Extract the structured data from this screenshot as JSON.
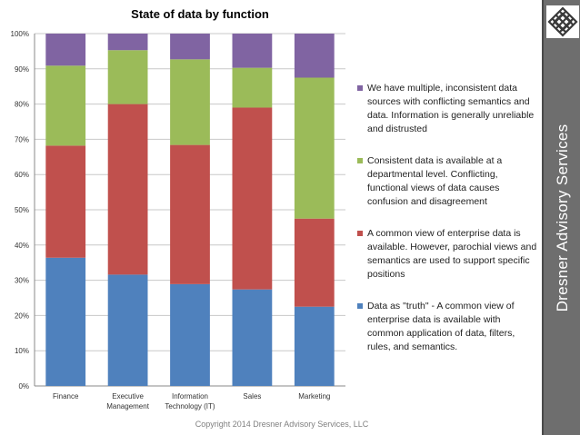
{
  "chart_data": {
    "type": "bar",
    "stacked": true,
    "title": "State of data by function",
    "categories": [
      "Finance",
      "Executive Management",
      "Information Technology (IT)",
      "Sales",
      "Marketing"
    ],
    "category_lines": [
      [
        "Finance"
      ],
      [
        "Executive",
        "Management"
      ],
      [
        "Information",
        "Technology (IT)"
      ],
      [
        "Sales"
      ],
      [
        "Marketing"
      ]
    ],
    "ylim": [
      0,
      100
    ],
    "yticks": [
      "0%",
      "10%",
      "20%",
      "30%",
      "40%",
      "50%",
      "60%",
      "70%",
      "80%",
      "90%",
      "100%"
    ],
    "series": [
      {
        "name": "Data as \"truth\" - A common view of enterprise data is available with common application of data, filters, rules, and semantics.",
        "color": "#4F81BD",
        "values": [
          36.4,
          31.6,
          28.9,
          27.4,
          22.5
        ]
      },
      {
        "name": "A common view of enterprise data is available. However, parochial views and semantics are used to support specific positions",
        "color": "#C0504D",
        "values": [
          31.8,
          48.4,
          39.5,
          51.6,
          25.0
        ]
      },
      {
        "name": "Consistent data is available at a departmental level. Conflicting, functional views of data causes confusion and disagreement",
        "color": "#9BBB59",
        "values": [
          22.7,
          15.3,
          24.3,
          11.3,
          40.0
        ]
      },
      {
        "name": "We have multiple, inconsistent data sources with conflicting semantics and data. Information is generally unreliable and distrusted",
        "color": "#8064A2",
        "values": [
          9.1,
          4.7,
          7.3,
          9.7,
          12.5
        ]
      }
    ]
  },
  "brand": {
    "name": "Dresner Advisory Services",
    "logo_icon": "endless-knot-icon"
  },
  "footer": {
    "copyright": "Copyright 2014 Dresner Advisory Services, LLC"
  }
}
